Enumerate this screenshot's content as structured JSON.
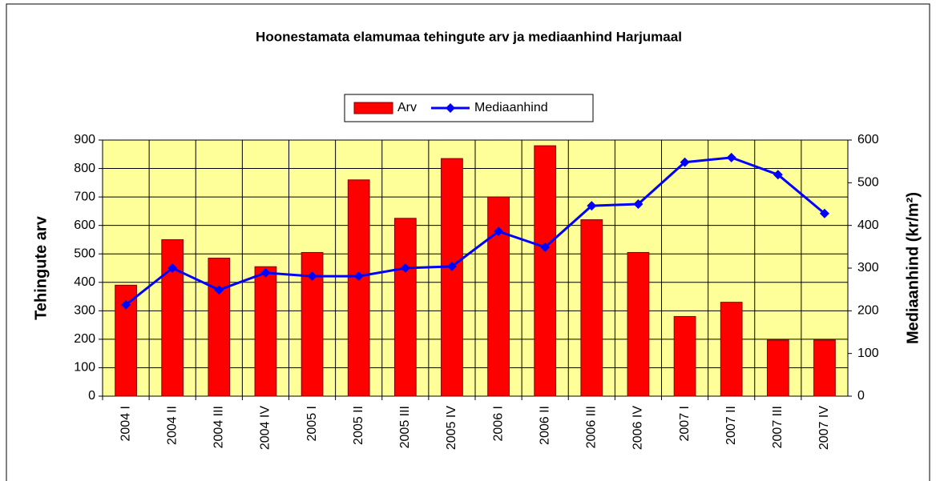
{
  "chart_data": {
    "type": "bar",
    "title": "Hoonestamata elamumaa tehingute arv ja mediaanhind Harjumaal",
    "y_label": "Tehingute arv",
    "y2_label": "Mediaanhind (kr/m²)",
    "categories": [
      "2004 I",
      "2004 II",
      "2004 III",
      "2004 IV",
      "2005 I",
      "2005 II",
      "2005 III",
      "2005 IV",
      "2006 I",
      "2006 II",
      "2006 III",
      "2006 IV",
      "2007 I",
      "2007 II",
      "2007 III",
      "2007 IV"
    ],
    "series": [
      {
        "name": "Arv",
        "type": "bar",
        "color": "#ff0000",
        "values": [
          390,
          550,
          485,
          455,
          505,
          760,
          625,
          835,
          700,
          880,
          620,
          505,
          280,
          330,
          197,
          197
        ]
      },
      {
        "name": "Mediaanhind",
        "type": "line",
        "axis": "y2",
        "color": "#0000ff",
        "values": [
          214,
          300,
          249,
          289,
          281,
          281,
          300,
          304,
          386,
          349,
          446,
          450,
          548,
          559,
          519,
          428
        ]
      }
    ],
    "ylim": [
      0,
      900
    ],
    "yticks": [
      0,
      100,
      200,
      300,
      400,
      500,
      600,
      700,
      800,
      900
    ],
    "y2lim": [
      0,
      600
    ],
    "y2ticks": [
      0,
      100,
      200,
      300,
      400,
      500,
      600
    ],
    "grid": true,
    "legend": "top",
    "plot_background": "#ffff99"
  }
}
